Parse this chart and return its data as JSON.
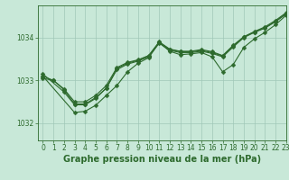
{
  "background_color": "#c8e8d8",
  "grid_color": "#a0c8b8",
  "line_color": "#2d6a2d",
  "marker_color": "#2d6a2d",
  "title": "Graphe pression niveau de la mer (hPa)",
  "xlim": [
    -0.5,
    23
  ],
  "ylim": [
    1031.6,
    1034.75
  ],
  "yticks": [
    1032,
    1033,
    1034
  ],
  "xticks": [
    0,
    1,
    2,
    3,
    4,
    5,
    6,
    7,
    8,
    9,
    10,
    11,
    12,
    13,
    14,
    15,
    16,
    17,
    18,
    19,
    20,
    21,
    22,
    23
  ],
  "series_A_x": [
    0,
    1,
    2,
    3,
    4,
    5,
    6,
    7,
    8,
    9,
    10,
    11,
    12,
    13,
    14,
    15,
    16,
    17,
    18,
    19,
    20,
    21,
    22,
    23
  ],
  "series_A_y": [
    1033.05,
    1033.0,
    1032.78,
    1032.45,
    1032.45,
    1032.6,
    1032.82,
    1033.25,
    1033.38,
    1033.45,
    1033.55,
    1033.87,
    1033.7,
    1033.65,
    1033.65,
    1033.68,
    1033.63,
    1033.55,
    1033.78,
    1034.0,
    1034.12,
    1034.22,
    1034.37,
    1034.55
  ],
  "series_B_x": [
    0,
    1,
    2,
    3,
    4,
    5,
    6,
    7,
    8,
    9,
    10,
    11,
    12,
    13,
    14,
    15,
    16,
    17,
    18,
    19,
    20,
    21,
    22,
    23
  ],
  "series_B_y": [
    1033.1,
    1033.0,
    1032.8,
    1032.5,
    1032.5,
    1032.65,
    1032.88,
    1033.3,
    1033.42,
    1033.48,
    1033.58,
    1033.9,
    1033.73,
    1033.68,
    1033.68,
    1033.72,
    1033.67,
    1033.58,
    1033.82,
    1034.02,
    1034.14,
    1034.25,
    1034.4,
    1034.58
  ],
  "series_C_x": [
    0,
    3,
    4,
    5,
    6,
    7,
    8,
    9,
    10,
    11,
    12,
    13,
    14,
    15,
    16,
    17,
    18,
    19,
    20,
    21,
    22,
    23
  ],
  "series_C_y": [
    1033.1,
    1032.25,
    1032.28,
    1032.42,
    1032.65,
    1032.88,
    1033.2,
    1033.4,
    1033.53,
    1033.88,
    1033.68,
    1033.6,
    1033.62,
    1033.65,
    1033.55,
    1033.2,
    1033.37,
    1033.77,
    1033.97,
    1034.12,
    1034.3,
    1034.52
  ],
  "series_D_x": [
    0,
    2,
    3,
    4,
    5,
    6,
    7,
    8,
    9,
    10,
    11,
    12,
    13,
    14,
    15,
    16,
    17,
    18,
    19,
    20,
    21,
    22,
    23
  ],
  "series_D_y": [
    1033.15,
    1032.73,
    1032.43,
    1032.43,
    1032.58,
    1032.82,
    1033.28,
    1033.4,
    1033.47,
    1033.57,
    1033.89,
    1033.72,
    1033.67,
    1033.67,
    1033.7,
    1033.65,
    1033.57,
    1033.8,
    1034.01,
    1034.13,
    1034.23,
    1034.38,
    1034.56
  ],
  "marker_size": 2.5,
  "linewidth": 0.8,
  "title_fontsize": 7.0,
  "tick_fontsize": 5.5
}
